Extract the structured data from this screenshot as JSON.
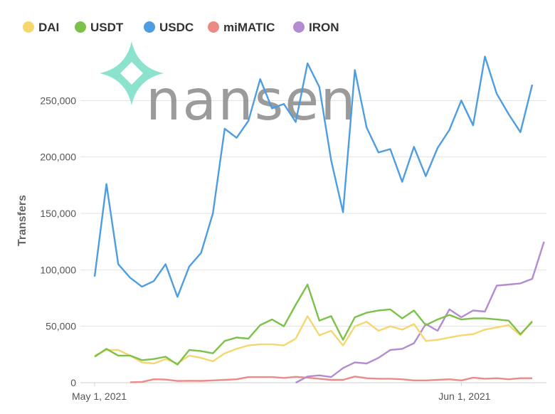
{
  "brand": {
    "name": "nansen",
    "mark_color": "#7fe0c8"
  },
  "chart_data": {
    "type": "line",
    "ylabel": "Transfers",
    "xlabel": "",
    "ylim": [
      0,
      300000
    ],
    "yticks": [
      0,
      50000,
      100000,
      150000,
      200000,
      250000
    ],
    "ytick_labels": [
      "0",
      "50,000",
      "100,000",
      "150,000",
      "200,000",
      "250,000"
    ],
    "xtick_labels": [
      {
        "day": 0,
        "label": "May 1, 2021"
      },
      {
        "day": 31,
        "label": "Jun 1, 2021"
      }
    ],
    "x_start": "2021-05-01",
    "grid": true,
    "legend": "top-left",
    "series": [
      {
        "name": "DAI",
        "color": "#f5d76e",
        "values": [
          24000,
          29000,
          29000,
          24000,
          18000,
          17000,
          21000,
          17000,
          24000,
          22000,
          19000,
          26000,
          30000,
          33000,
          34000,
          34000,
          33000,
          39000,
          59000,
          42000,
          46000,
          33000,
          50000,
          54000,
          46000,
          50000,
          47000,
          52000,
          37000,
          38000,
          40000,
          42000,
          43000,
          47000,
          49000,
          51000,
          42000,
          55000
        ]
      },
      {
        "name": "USDT",
        "color": "#7cc14a",
        "values": [
          23000,
          30000,
          24000,
          24000,
          20000,
          21000,
          23000,
          16000,
          29000,
          28000,
          26000,
          37000,
          40000,
          39000,
          51000,
          56000,
          50000,
          69000,
          87000,
          55000,
          59000,
          38000,
          58000,
          62000,
          64000,
          65000,
          57000,
          64000,
          51000,
          56000,
          60000,
          56000,
          57000,
          57000,
          56000,
          55000,
          43000,
          54000
        ]
      },
      {
        "name": "USDC",
        "color": "#4d9de0",
        "values": [
          94000,
          176000,
          105000,
          93000,
          85000,
          90000,
          105000,
          76000,
          103000,
          115000,
          150000,
          225000,
          217000,
          232000,
          269000,
          243000,
          247000,
          231000,
          283000,
          262000,
          197000,
          151000,
          277000,
          226000,
          204000,
          207000,
          178000,
          209000,
          183000,
          208000,
          224000,
          250000,
          228000,
          289000,
          256000,
          238000,
          222000,
          264000
        ]
      },
      {
        "name": "miMATIC",
        "color": "#ec8a86",
        "values": [
          null,
          null,
          null,
          400,
          700,
          3000,
          2800,
          1500,
          1700,
          1600,
          2000,
          2500,
          3000,
          5000,
          5000,
          5000,
          4200,
          5200,
          4500,
          3500,
          2500,
          2500,
          5500,
          4000,
          3500,
          3500,
          3000,
          2000,
          2000,
          2500,
          3000,
          2000,
          4500,
          3500,
          4000,
          3000,
          4000,
          4000
        ]
      },
      {
        "name": "IRON",
        "color": "#b48bd1",
        "values": [
          null,
          null,
          null,
          null,
          null,
          null,
          null,
          null,
          null,
          null,
          null,
          null,
          null,
          null,
          null,
          null,
          null,
          null,
          null,
          null,
          null,
          null,
          null,
          null,
          null,
          null,
          null,
          null,
          null,
          null,
          null,
          null,
          null,
          null,
          null,
          null,
          null,
          null
        ]
      }
    ]
  },
  "iron_series": {
    "start_day": 17,
    "values": [
      0,
      5500,
      6500,
      5000,
      13000,
      18000,
      17000,
      22000,
      29000,
      30000,
      35000,
      52000,
      46000,
      65000,
      58000,
      64000,
      63000,
      86000,
      87000,
      88000,
      92000,
      125000
    ]
  }
}
